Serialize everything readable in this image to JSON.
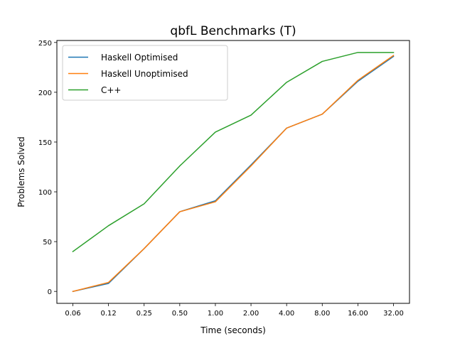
{
  "chart_data": {
    "type": "line",
    "title": "qbfL Benchmarks (T)",
    "xlabel": "Time (seconds)",
    "ylabel": "Problems Solved",
    "categories": [
      "0.06",
      "0.12",
      "0.25",
      "0.50",
      "1.00",
      "2.00",
      "4.00",
      "8.00",
      "16.00",
      "32.00"
    ],
    "yticks": [
      "0",
      "50",
      "100",
      "150",
      "200",
      "250"
    ],
    "ylim": [
      -12,
      252
    ],
    "grid": false,
    "legend_position": "top-left",
    "series": [
      {
        "name": "Haskell Optimised",
        "color": "#1f77b4",
        "values": [
          0,
          8,
          43,
          80,
          91,
          127,
          164,
          178,
          211,
          236
        ]
      },
      {
        "name": "Haskell Unoptimised",
        "color": "#ff7f0e",
        "values": [
          0,
          9,
          43,
          80,
          90,
          126,
          164,
          178,
          212,
          237
        ]
      },
      {
        "name": "C++",
        "color": "#2ca02c",
        "values": [
          40,
          66,
          88,
          126,
          160,
          177,
          210,
          231,
          240,
          240
        ]
      }
    ]
  }
}
